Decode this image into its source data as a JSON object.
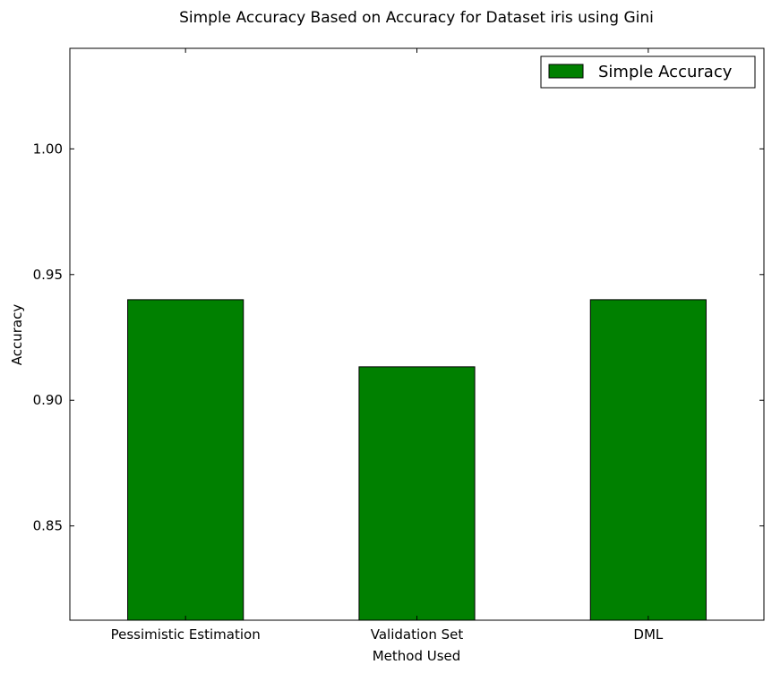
{
  "chart_data": {
    "type": "bar",
    "title": "Simple Accuracy Based on Accuracy for Dataset iris using Gini",
    "xlabel": "Method Used",
    "ylabel": "Accuracy",
    "categories": [
      "Pessimistic Estimation",
      "Validation Set",
      "DML"
    ],
    "series": [
      {
        "name": "Simple Accuracy",
        "values": [
          0.94,
          0.9133,
          0.94
        ],
        "color": "#008000"
      }
    ],
    "ylim": [
      0.8125,
      1.04
    ],
    "yticks": [
      0.85,
      0.9,
      0.95,
      1.0
    ],
    "ytick_labels": [
      "0.85",
      "0.90",
      "0.95",
      "1.00"
    ],
    "legend_position": "top-right",
    "grid": false
  }
}
